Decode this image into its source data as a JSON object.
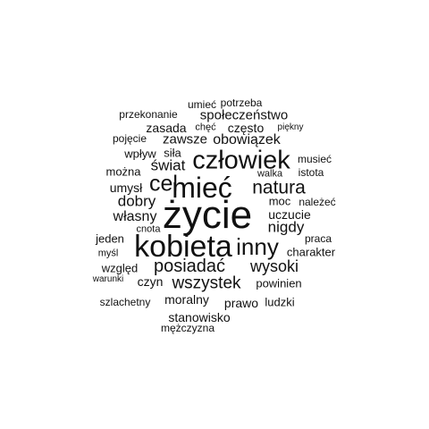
{
  "words": [
    {
      "text": "życie",
      "weight": 100
    },
    {
      "text": "kobieta",
      "weight": 72
    },
    {
      "text": "mieć",
      "weight": 64
    },
    {
      "text": "człowiek",
      "weight": 58
    },
    {
      "text": "inny",
      "weight": 50
    },
    {
      "text": "cel",
      "weight": 46
    },
    {
      "text": "natura",
      "weight": 40
    },
    {
      "text": "posiadać",
      "weight": 38
    },
    {
      "text": "wszystek",
      "weight": 36
    },
    {
      "text": "wysoki",
      "weight": 34
    },
    {
      "text": "świat",
      "weight": 33
    },
    {
      "text": "dobry",
      "weight": 33
    },
    {
      "text": "nigdy",
      "weight": 32
    },
    {
      "text": "własny",
      "weight": 31
    },
    {
      "text": "obowiązek",
      "weight": 31
    },
    {
      "text": "zawsze",
      "weight": 30
    },
    {
      "text": "społeczeństwo",
      "weight": 29
    },
    {
      "text": "umysł",
      "weight": 28
    },
    {
      "text": "uczucie",
      "weight": 28
    },
    {
      "text": "moralny",
      "weight": 28
    },
    {
      "text": "stanowisko",
      "weight": 27
    },
    {
      "text": "często",
      "weight": 27
    },
    {
      "text": "zasada",
      "weight": 27
    },
    {
      "text": "moc",
      "weight": 26
    },
    {
      "text": "prawo",
      "weight": 26
    },
    {
      "text": "czyn",
      "weight": 26
    },
    {
      "text": "powinien",
      "weight": 25
    },
    {
      "text": "charakter",
      "weight": 25
    },
    {
      "text": "siła",
      "weight": 25
    },
    {
      "text": "wpływ",
      "weight": 25
    },
    {
      "text": "można",
      "weight": 24
    },
    {
      "text": "względ",
      "weight": 24
    },
    {
      "text": "jeden",
      "weight": 24
    },
    {
      "text": "ludzki",
      "weight": 24
    },
    {
      "text": "przekonanie",
      "weight": 23
    },
    {
      "text": "mężczyzna",
      "weight": 23
    },
    {
      "text": "potrzeba",
      "weight": 23
    },
    {
      "text": "pojęcie",
      "weight": 22
    },
    {
      "text": "szlachetny",
      "weight": 22
    },
    {
      "text": "musieć",
      "weight": 22
    },
    {
      "text": "istota",
      "weight": 22
    },
    {
      "text": "należeć",
      "weight": 22
    },
    {
      "text": "praca",
      "weight": 22
    },
    {
      "text": "umieć",
      "weight": 22
    },
    {
      "text": "chęć",
      "weight": 21
    },
    {
      "text": "walka",
      "weight": 21
    },
    {
      "text": "cnota",
      "weight": 21
    },
    {
      "text": "myśl",
      "weight": 21
    },
    {
      "text": "piękny",
      "weight": 20
    },
    {
      "text": "warunki",
      "weight": 20
    }
  ]
}
